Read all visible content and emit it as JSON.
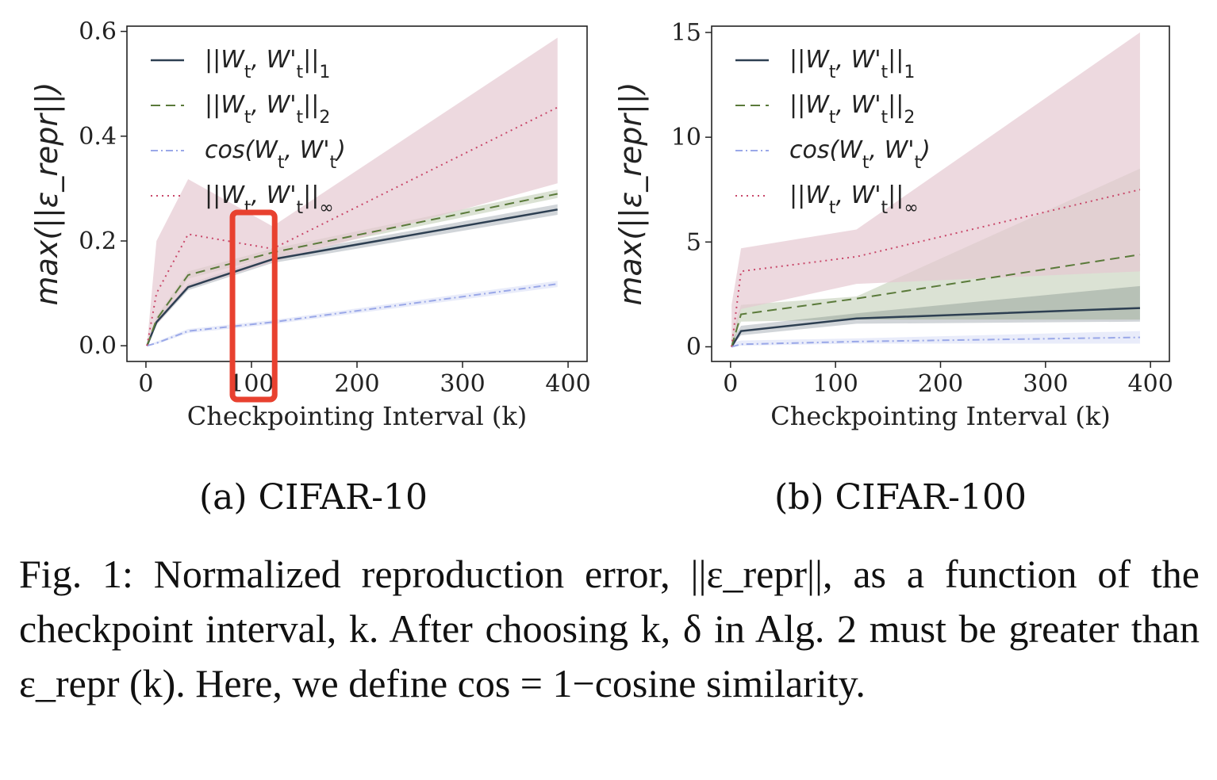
{
  "chart_data": [
    {
      "type": "line",
      "subcaption": "(a) CIFAR-10",
      "xlabel": "Checkpointing Interval (k)",
      "ylabel": "max(||ε_repr||)",
      "xlim": [
        -18,
        418
      ],
      "ylim": [
        -0.03,
        0.61
      ],
      "xticks": [
        0,
        100,
        200,
        300,
        400
      ],
      "yticks": [
        0.0,
        0.2,
        0.4,
        0.6
      ],
      "ytick_labels": [
        "0.0",
        "0.2",
        "0.4",
        "0.6"
      ],
      "legend_position": "top-left",
      "highlight": {
        "x_range": [
          82,
          122
        ],
        "color": "#e8412f",
        "label": "100"
      },
      "series": [
        {
          "name": "||W_t, W'_t||_1",
          "color": "#2d3f52",
          "style": "solid",
          "x": [
            1,
            10,
            40,
            120,
            390
          ],
          "y": [
            0.0,
            0.045,
            0.112,
            0.165,
            0.26
          ],
          "band_lower": [
            0.0,
            0.04,
            0.106,
            0.158,
            0.25
          ],
          "band_upper": [
            0.002,
            0.05,
            0.118,
            0.172,
            0.27
          ]
        },
        {
          "name": "||W_t, W'_t||_2",
          "color": "#5a7a3a",
          "style": "dashed",
          "x": [
            1,
            10,
            40,
            120,
            390
          ],
          "y": [
            0.0,
            0.05,
            0.135,
            0.178,
            0.29
          ],
          "band_lower": [
            0.0,
            0.044,
            0.128,
            0.171,
            0.282
          ],
          "band_upper": [
            0.002,
            0.056,
            0.142,
            0.185,
            0.298
          ]
        },
        {
          "name": "cos(W_t, W'_t)",
          "color": "#9aa8e8",
          "style": "dashdot",
          "x": [
            1,
            10,
            40,
            120,
            390
          ],
          "y": [
            0.0,
            0.005,
            0.028,
            0.045,
            0.118
          ],
          "band_lower": [
            0.0,
            0.003,
            0.024,
            0.041,
            0.112
          ],
          "band_upper": [
            0.001,
            0.008,
            0.032,
            0.049,
            0.124
          ]
        },
        {
          "name": "||W_t, W'_t||_∞",
          "color": "#c9486a",
          "style": "dotted",
          "band_color": "#e6c9d2",
          "x": [
            1,
            10,
            40,
            120,
            390
          ],
          "y": [
            0.0,
            0.1,
            0.213,
            0.185,
            0.455
          ],
          "band_lower": [
            0.0,
            0.04,
            0.11,
            0.16,
            0.31
          ],
          "band_upper": [
            0.002,
            0.2,
            0.318,
            0.228,
            0.588
          ]
        }
      ]
    },
    {
      "type": "line",
      "subcaption": "(b) CIFAR-100",
      "xlabel": "Checkpointing Interval (k)",
      "ylabel": "max(||ε_repr||)",
      "xlim": [
        -18,
        418
      ],
      "ylim": [
        -0.7,
        15.3
      ],
      "xticks": [
        0,
        100,
        200,
        300,
        400
      ],
      "yticks": [
        0,
        5,
        10,
        15
      ],
      "ytick_labels": [
        "0",
        "5",
        "10",
        "15"
      ],
      "legend_position": "top-left",
      "series": [
        {
          "name": "||W_t, W'_t||_1",
          "color": "#2d3f52",
          "style": "solid",
          "x": [
            1,
            10,
            120,
            390
          ],
          "y": [
            0.0,
            0.75,
            1.35,
            1.85
          ],
          "band_lower": [
            0.0,
            0.55,
            1.1,
            1.2
          ],
          "band_upper": [
            0.3,
            1.0,
            1.6,
            2.9
          ]
        },
        {
          "name": "||W_t, W'_t||_2",
          "color": "#5a7a3a",
          "style": "dashed",
          "x": [
            1,
            10,
            120,
            390
          ],
          "y": [
            0.0,
            1.55,
            2.3,
            4.4
          ],
          "band_lower": [
            0.0,
            1.2,
            1.3,
            1.3
          ],
          "band_upper": [
            0.5,
            2.0,
            2.4,
            8.5
          ]
        },
        {
          "name": "cos(W_t, W'_t)",
          "color": "#9aa8e8",
          "style": "dashdot",
          "x": [
            1,
            10,
            120,
            390
          ],
          "y": [
            0.0,
            0.12,
            0.25,
            0.45
          ],
          "band_lower": [
            0.0,
            0.05,
            0.15,
            0.15
          ],
          "band_upper": [
            0.2,
            0.3,
            0.4,
            0.75
          ]
        },
        {
          "name": "||W_t, W'_t||_∞",
          "color": "#c9486a",
          "style": "dotted",
          "band_color": "#e6c9d2",
          "x": [
            1,
            10,
            120,
            390
          ],
          "y": [
            0.0,
            3.6,
            4.3,
            7.5
          ],
          "band_lower": [
            0.0,
            1.8,
            3.0,
            3.6
          ],
          "band_upper": [
            2.0,
            4.7,
            5.6,
            15.0
          ]
        }
      ]
    }
  ],
  "caption": "Fig. 1: Normalized reproduction error, ||ε_repr||, as a function of the checkpoint interval, k. After choosing k, δ in Alg. 2 must be greater than ε_repr (k). Here, we define cos = 1−cosine similarity."
}
